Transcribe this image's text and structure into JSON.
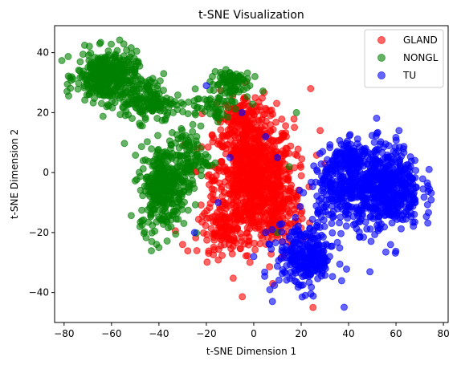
{
  "chart_data": {
    "type": "scatter",
    "title": "t-SNE Visualization",
    "xlabel": "t-SNE Dimension 1",
    "ylabel": "t-SNE Dimension 2",
    "xlim": [
      -84,
      82
    ],
    "ylim": [
      -50,
      49
    ],
    "xticks": [
      -80,
      -60,
      -40,
      -20,
      0,
      20,
      40,
      60,
      80
    ],
    "yticks": [
      -40,
      -20,
      0,
      20,
      40
    ],
    "grid": false,
    "legend_position": "top-right",
    "series": [
      {
        "name": "GLAND",
        "color": "#ff0000",
        "clusters": [
          {
            "center": [
              0,
              -2
            ],
            "spread": [
              12,
              14
            ],
            "count": 900
          },
          {
            "center": [
              -5,
              18
            ],
            "spread": [
              8,
              6
            ],
            "count": 120
          },
          {
            "center": [
              -12,
              -20
            ],
            "spread": [
              8,
              5
            ],
            "count": 100
          },
          {
            "center": [
              12,
              -15
            ],
            "spread": [
              6,
              8
            ],
            "count": 80
          }
        ],
        "outliers": [
          [
            8,
            -37
          ],
          [
            25,
            -45
          ],
          [
            28,
            14
          ],
          [
            24,
            28
          ],
          [
            -30,
            -24
          ],
          [
            30,
            3
          ]
        ]
      },
      {
        "name": "NONGL",
        "color": "#008000",
        "clusters": [
          {
            "center": [
              -62,
              32
            ],
            "spread": [
              9,
              6
            ],
            "count": 380
          },
          {
            "center": [
              -45,
              24
            ],
            "spread": [
              8,
              5
            ],
            "count": 150
          },
          {
            "center": [
              -38,
              -5
            ],
            "spread": [
              7,
              10
            ],
            "count": 320
          },
          {
            "center": [
              -28,
              5
            ],
            "spread": [
              6,
              6
            ],
            "count": 100
          },
          {
            "center": [
              -10,
              30
            ],
            "spread": [
              6,
              4
            ],
            "count": 80
          },
          {
            "center": [
              -20,
              22
            ],
            "spread": [
              10,
              4
            ],
            "count": 60
          }
        ],
        "outliers": [
          [
            -43,
            -23
          ],
          [
            -40,
            -25
          ],
          [
            -48,
            -18
          ],
          [
            -38,
            33
          ],
          [
            -34,
            20
          ],
          [
            18,
            20
          ],
          [
            15,
            2
          ],
          [
            10,
            -20
          ]
        ]
      },
      {
        "name": "TU",
        "color": "#0000ff",
        "clusters": [
          {
            "center": [
              55,
              -5
            ],
            "spread": [
              11,
              10
            ],
            "count": 600
          },
          {
            "center": [
              35,
              -5
            ],
            "spread": [
              8,
              8
            ],
            "count": 200
          },
          {
            "center": [
              22,
              -28
            ],
            "spread": [
              9,
              8
            ],
            "count": 280
          },
          {
            "center": [
              40,
              5
            ],
            "spread": [
              5,
              4
            ],
            "count": 80
          }
        ],
        "outliers": [
          [
            -20,
            29
          ],
          [
            -5,
            20
          ],
          [
            5,
            12
          ],
          [
            10,
            5
          ],
          [
            -10,
            5
          ],
          [
            5,
            -20
          ],
          [
            -25,
            -20
          ],
          [
            -15,
            -10
          ],
          [
            0,
            -28
          ],
          [
            12,
            -25
          ]
        ]
      }
    ]
  }
}
